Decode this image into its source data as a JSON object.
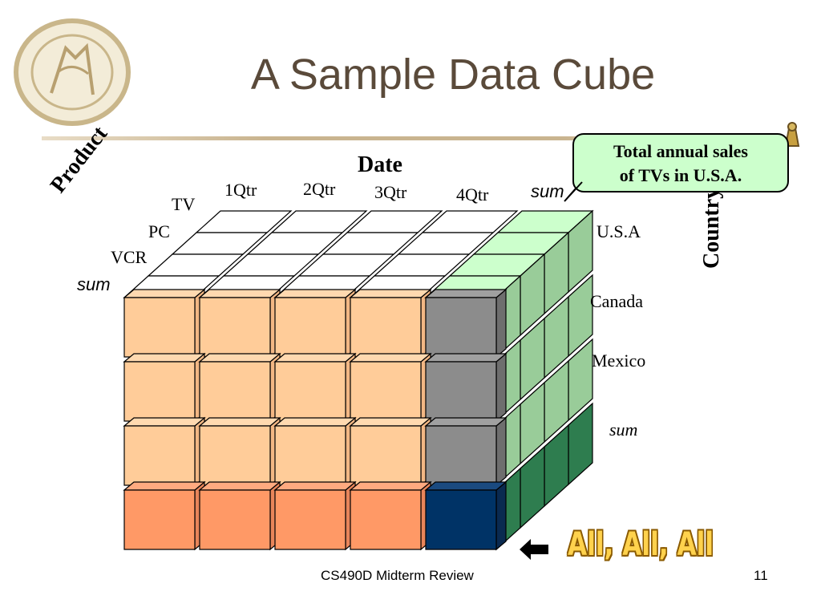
{
  "slide": {
    "title": "A Sample Data Cube",
    "footer": "CS490D Midterm Review",
    "page_number": "11"
  },
  "cube": {
    "date_axis_label": "Date",
    "product_axis_label": "Product",
    "country_axis_label": "Country",
    "date_labels": [
      "1Qtr",
      "2Qtr",
      "3Qtr",
      "4Qtr",
      "sum"
    ],
    "product_labels": [
      "TV",
      "PC",
      "VCR",
      "sum"
    ],
    "country_labels": [
      "U.S.A",
      "Canada",
      "Mexico",
      "sum"
    ],
    "colors": {
      "face_data": "#ffcc99",
      "face_sum_row": "#ff9966",
      "face_sum_col": "#8c8c8c",
      "face_all": "#003366",
      "side_data": "#99cc99",
      "side_sum": "#2e7d4f",
      "top_data": "#ffffff",
      "top_sum": "#ccffcc"
    }
  },
  "callout": {
    "line1": "Total annual sales",
    "line2": "of  TVs in U.S.A."
  },
  "annotation": {
    "all_all_all": "All, All, All"
  }
}
